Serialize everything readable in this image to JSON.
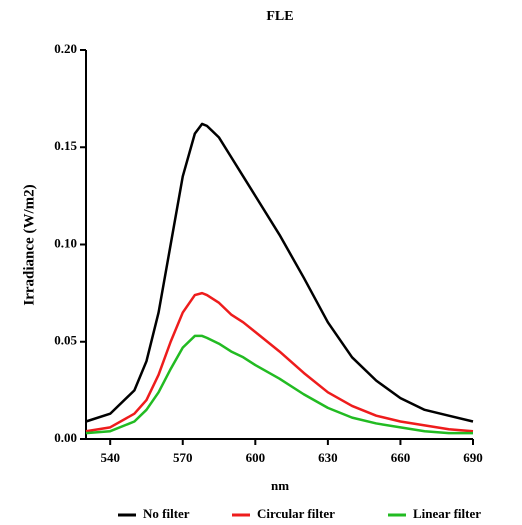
{
  "chart_data": {
    "type": "line",
    "title": "FLE",
    "x_label": "nm",
    "y_label": "Irradiance (W/m2)",
    "x": [
      530,
      540,
      550,
      555,
      560,
      565,
      570,
      575,
      578,
      580,
      585,
      590,
      595,
      600,
      610,
      620,
      630,
      640,
      650,
      660,
      670,
      680,
      690
    ],
    "series": [
      {
        "name": "No filter",
        "color": "#000000",
        "values": [
          0.009,
          0.013,
          0.025,
          0.04,
          0.065,
          0.1,
          0.135,
          0.157,
          0.162,
          0.161,
          0.155,
          0.145,
          0.135,
          0.125,
          0.105,
          0.083,
          0.06,
          0.042,
          0.03,
          0.021,
          0.015,
          0.012,
          0.009
        ]
      },
      {
        "name": "Circular filter",
        "color": "#ee1c1c",
        "values": [
          0.004,
          0.006,
          0.013,
          0.02,
          0.033,
          0.05,
          0.065,
          0.074,
          0.075,
          0.074,
          0.07,
          0.064,
          0.06,
          0.055,
          0.045,
          0.034,
          0.024,
          0.017,
          0.012,
          0.009,
          0.007,
          0.005,
          0.004
        ]
      },
      {
        "name": "Linear filter",
        "color": "#22bb22",
        "values": [
          0.003,
          0.004,
          0.009,
          0.015,
          0.024,
          0.036,
          0.047,
          0.053,
          0.053,
          0.052,
          0.049,
          0.045,
          0.042,
          0.038,
          0.031,
          0.023,
          0.016,
          0.011,
          0.008,
          0.006,
          0.004,
          0.003,
          0.003
        ]
      }
    ],
    "xlim": [
      530,
      690
    ],
    "ylim": [
      0,
      0.2
    ],
    "xticks": [
      540,
      570,
      600,
      630,
      660,
      690
    ],
    "yticks": [
      {
        "value": 0,
        "label": "0.00"
      },
      {
        "value": 0.05,
        "label": "0.05"
      },
      {
        "value": 0.1,
        "label": "0.10"
      },
      {
        "value": 0.15,
        "label": "0.15"
      },
      {
        "value": 0.2,
        "label": "0.20"
      }
    ],
    "legend": "bottom"
  }
}
